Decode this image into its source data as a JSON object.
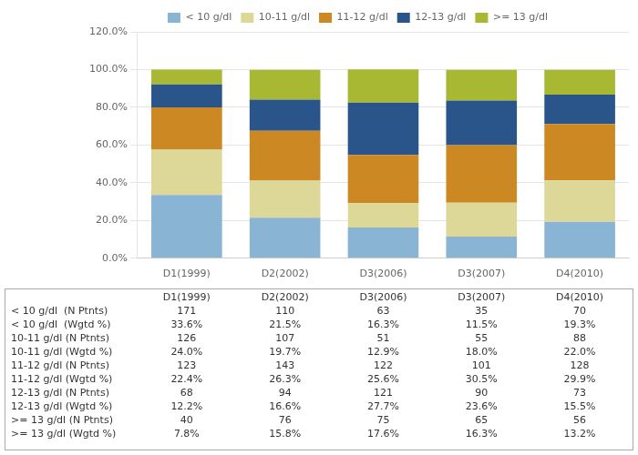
{
  "chart_data": {
    "type": "bar",
    "stacked": true,
    "categories": [
      "D1(1999)",
      "D2(2002)",
      "D3(2006)",
      "D3(2007)",
      "D4(2010)"
    ],
    "series": [
      {
        "name": "< 10 g/dl",
        "color": "#8ab4d4",
        "values": [
          33.6,
          21.5,
          16.3,
          11.5,
          19.3
        ]
      },
      {
        "name": "10-11 g/dl",
        "color": "#ddd897",
        "values": [
          24.0,
          19.7,
          12.9,
          18.0,
          22.0
        ]
      },
      {
        "name": "11-12 g/dl",
        "color": "#cc8822",
        "values": [
          22.4,
          26.3,
          25.6,
          30.5,
          29.9
        ]
      },
      {
        "name": "12-13 g/dl",
        "color": "#2a558a",
        "values": [
          12.2,
          16.6,
          27.7,
          23.6,
          15.5
        ]
      },
      {
        "name": ">= 13 g/dl",
        "color": "#a8b832",
        "values": [
          7.8,
          15.8,
          17.6,
          16.3,
          13.2
        ]
      }
    ],
    "ylim": [
      0,
      120
    ],
    "yticks": [
      {
        "value": 0,
        "label": "0.0%"
      },
      {
        "value": 20,
        "label": "20.0%"
      },
      {
        "value": 40,
        "label": "40.0%"
      },
      {
        "value": 60,
        "label": "60.0%"
      },
      {
        "value": 80,
        "label": "80.0%"
      },
      {
        "value": 100,
        "label": "100.0%"
      },
      {
        "value": 120,
        "label": "120.0%"
      }
    ],
    "grid": true,
    "legend": "top",
    "table_rows": [
      [
        "< 10 g/dl  (N Ptnts)",
        "171",
        "110",
        "63",
        "35",
        "70"
      ],
      [
        "< 10 g/dl  (Wgtd %)",
        "33.6%",
        "21.5%",
        "16.3%",
        "11.5%",
        "19.3%"
      ],
      [
        "10-11 g/dl (N Ptnts)",
        "126",
        "107",
        "51",
        "55",
        "88"
      ],
      [
        "10-11 g/dl (Wgtd %)",
        "24.0%",
        "19.7%",
        "12.9%",
        "18.0%",
        "22.0%"
      ],
      [
        "11-12 g/dl (N Ptnts)",
        "123",
        "143",
        "122",
        "101",
        "128"
      ],
      [
        "11-12 g/dl (Wgtd %)",
        "22.4%",
        "26.3%",
        "25.6%",
        "30.5%",
        "29.9%"
      ],
      [
        "12-13 g/dl (N Ptnts)",
        "68",
        "94",
        "121",
        "90",
        "73"
      ],
      [
        "12-13 g/dl (Wgtd %)",
        "12.2%",
        "16.6%",
        "27.7%",
        "23.6%",
        "15.5%"
      ],
      [
        ">= 13 g/dl (N Ptnts)",
        "40",
        "76",
        "75",
        "65",
        "56"
      ],
      [
        ">= 13 g/dl (Wgtd %)",
        "7.8%",
        "15.8%",
        "17.6%",
        "16.3%",
        "13.2%"
      ]
    ]
  }
}
